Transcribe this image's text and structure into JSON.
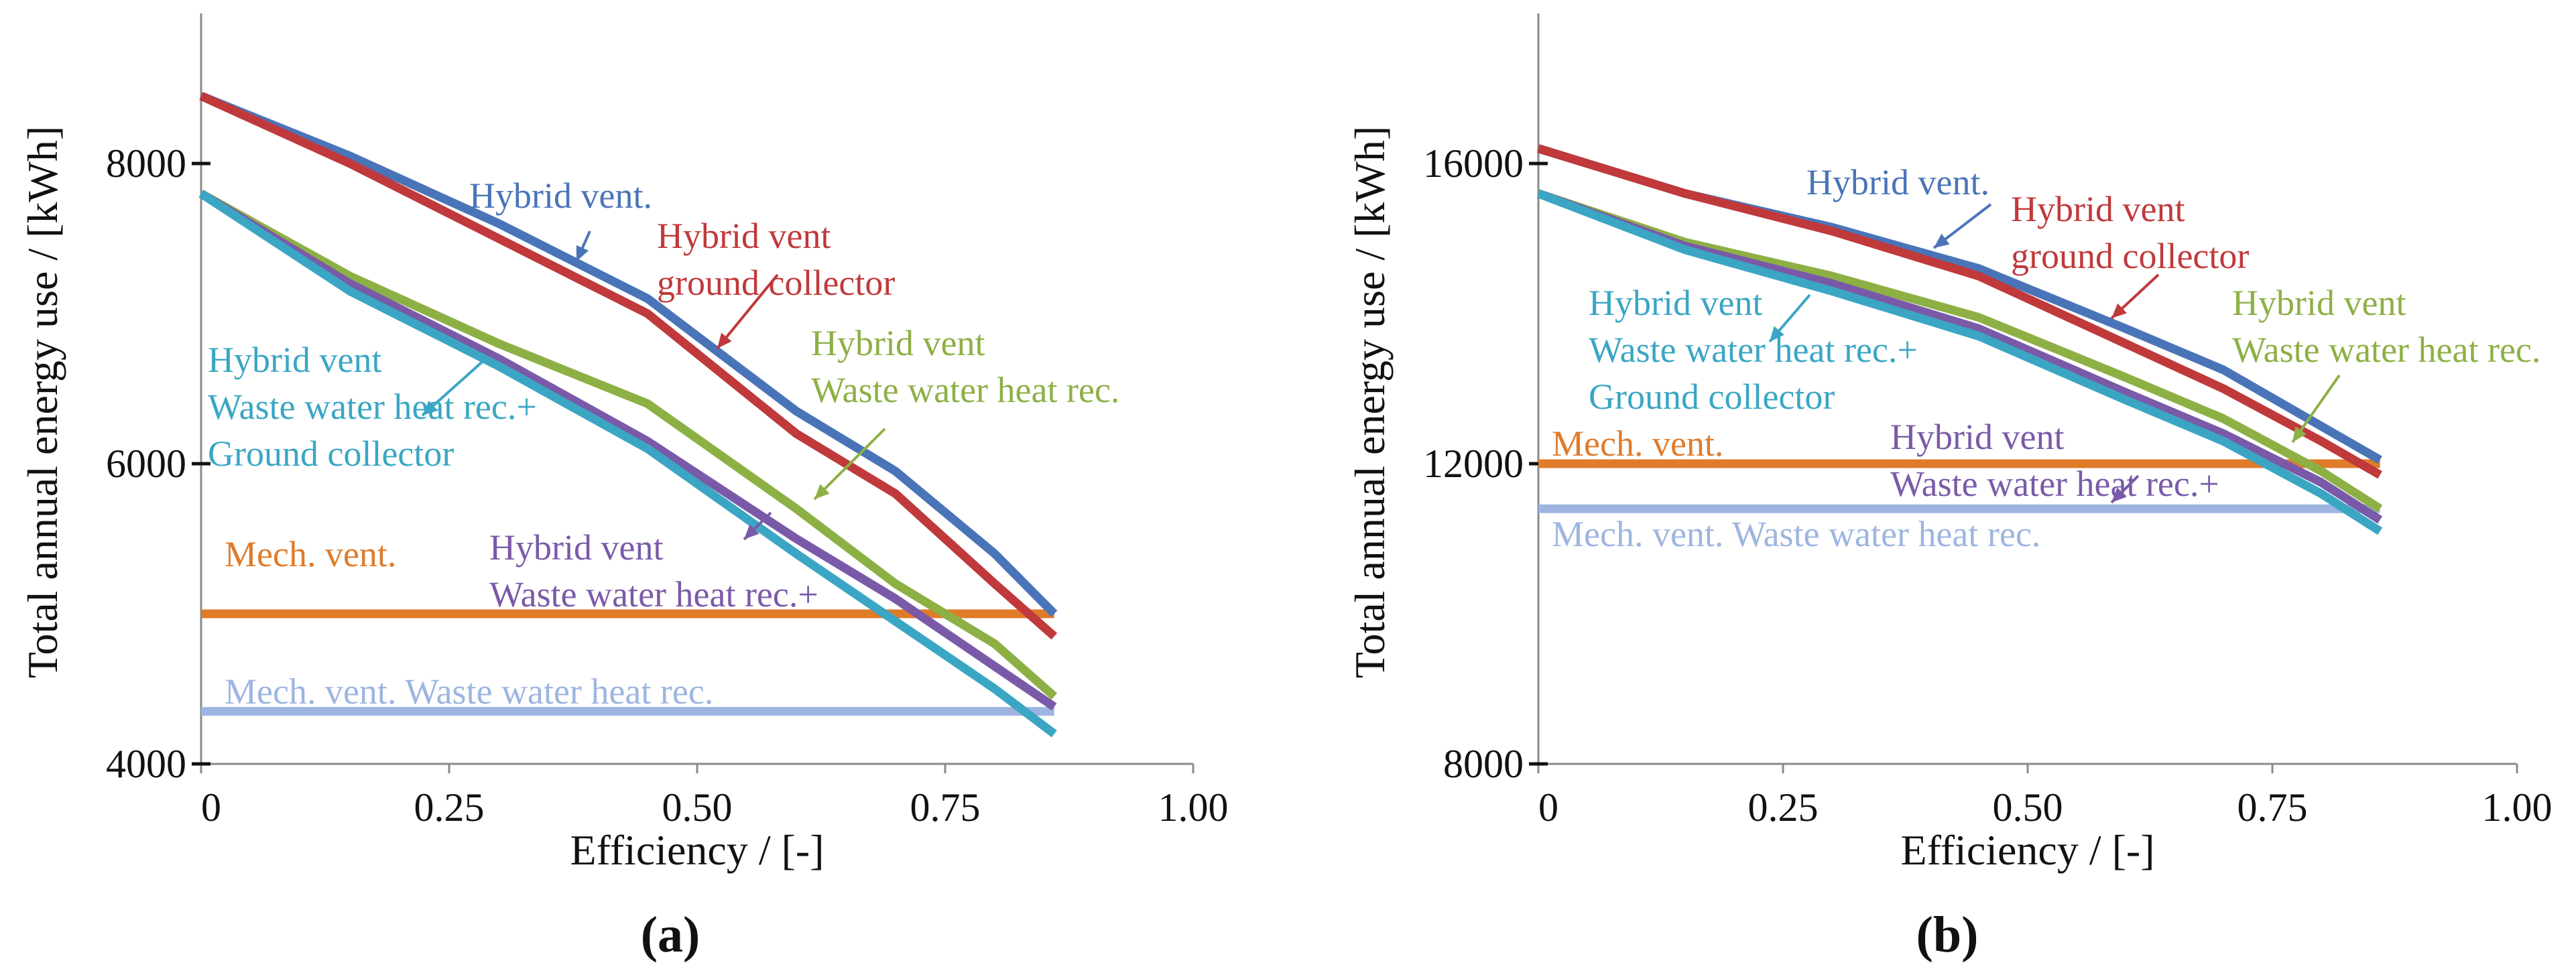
{
  "chart_data": [
    {
      "panel": "(a)",
      "type": "line",
      "xlabel": "Efficiency / [-]",
      "ylabel": "Total annual energy use / [kWh]",
      "xlim": [
        0,
        1.0
      ],
      "ylim": [
        4000,
        9000
      ],
      "xticks": [
        0,
        0.25,
        0.5,
        0.75,
        1.0
      ],
      "xtick_labels": [
        "0",
        "0.25",
        "0.50",
        "0.75",
        "1.00"
      ],
      "yticks": [
        4000,
        6000,
        8000
      ],
      "ytick_labels": [
        "4000",
        "6000",
        "8000"
      ],
      "series": [
        {
          "name": "Hybrid vent.",
          "color": "#4a74b8",
          "x": [
            0,
            0.15,
            0.3,
            0.45,
            0.6,
            0.7,
            0.8,
            0.86
          ],
          "y": [
            8450,
            8050,
            7600,
            7100,
            6350,
            5950,
            5400,
            5000
          ]
        },
        {
          "name": "Hybrid vent ground collector",
          "color": "#c0393b",
          "x": [
            0,
            0.15,
            0.3,
            0.45,
            0.6,
            0.7,
            0.8,
            0.86
          ],
          "y": [
            8450,
            8000,
            7500,
            7000,
            6200,
            5800,
            5200,
            4850
          ]
        },
        {
          "name": "Hybrid vent Waste water heat rec.",
          "color": "#8db045",
          "x": [
            0,
            0.15,
            0.3,
            0.45,
            0.6,
            0.7,
            0.8,
            0.86
          ],
          "y": [
            7800,
            7250,
            6800,
            6400,
            5700,
            5200,
            4800,
            4450
          ]
        },
        {
          "name": "Hybrid vent Waste water heat rec.+",
          "color": "#7a5aa8",
          "x": [
            0,
            0.15,
            0.3,
            0.45,
            0.6,
            0.7,
            0.8,
            0.86
          ],
          "y": [
            7800,
            7200,
            6700,
            6150,
            5500,
            5100,
            4650,
            4380
          ]
        },
        {
          "name": "Hybrid vent Waste water heat rec.+ Ground collector",
          "color": "#3aa6c4",
          "x": [
            0,
            0.15,
            0.3,
            0.45,
            0.6,
            0.7,
            0.8,
            0.86
          ],
          "y": [
            7800,
            7150,
            6650,
            6100,
            5400,
            4950,
            4500,
            4200
          ]
        },
        {
          "name": "Mech. vent.",
          "color": "#e07b2a",
          "x": [
            0,
            0.86
          ],
          "y": [
            5000,
            5000
          ]
        },
        {
          "name": "Mech. vent. Waste water heat rec.",
          "color": "#9db5e0",
          "x": [
            0,
            0.86
          ],
          "y": [
            4350,
            4350
          ]
        }
      ],
      "annotations": [
        {
          "text": "Hybrid vent.",
          "color": "#4a74b8"
        },
        {
          "text": "Hybrid vent",
          "color": "#c0393b"
        },
        {
          "text": "ground collector",
          "color": "#c0393b"
        },
        {
          "text": "Hybrid vent",
          "color": "#8db045"
        },
        {
          "text": "Waste water heat rec.",
          "color": "#8db045"
        },
        {
          "text": "Hybrid vent",
          "color": "#3aa6c4"
        },
        {
          "text": "Waste water heat rec.+",
          "color": "#3aa6c4"
        },
        {
          "text": "Ground collector",
          "color": "#3aa6c4"
        },
        {
          "text": "Hybrid vent",
          "color": "#7a5aa8"
        },
        {
          "text": "Waste water heat rec.+",
          "color": "#7a5aa8"
        },
        {
          "text": "Mech. vent.",
          "color": "#e07b2a"
        },
        {
          "text": "Mech. vent. Waste water heat rec.",
          "color": "#9db5e0"
        }
      ]
    },
    {
      "panel": "(b)",
      "type": "line",
      "xlabel": "Efficiency / [-]",
      "ylabel": "Total annual energy use / [kWh]",
      "xlim": [
        0,
        1.0
      ],
      "ylim": [
        8000,
        18000
      ],
      "xticks": [
        0,
        0.25,
        0.5,
        0.75,
        1.0
      ],
      "xtick_labels": [
        "0",
        "0.25",
        "0.50",
        "0.75",
        "1.00"
      ],
      "yticks": [
        8000,
        12000,
        16000
      ],
      "ytick_labels": [
        "8000",
        "12000",
        "16000"
      ],
      "series": [
        {
          "name": "Hybrid vent.",
          "color": "#4a74b8",
          "x": [
            0,
            0.15,
            0.3,
            0.45,
            0.6,
            0.7,
            0.8,
            0.86
          ],
          "y": [
            16200,
            15600,
            15150,
            14600,
            13800,
            13250,
            12500,
            12050
          ]
        },
        {
          "name": "Hybrid vent ground collector",
          "color": "#c0393b",
          "x": [
            0,
            0.15,
            0.3,
            0.45,
            0.6,
            0.7,
            0.8,
            0.86
          ],
          "y": [
            16200,
            15600,
            15100,
            14500,
            13600,
            13000,
            12300,
            11850
          ]
        },
        {
          "name": "Hybrid vent Waste water heat rec.",
          "color": "#8db045",
          "x": [
            0,
            0.15,
            0.3,
            0.45,
            0.6,
            0.7,
            0.8,
            0.86
          ],
          "y": [
            15600,
            14950,
            14500,
            13950,
            13150,
            12600,
            11900,
            11400
          ]
        },
        {
          "name": "Hybrid vent Waste water heat rec.+",
          "color": "#7a5aa8",
          "x": [
            0,
            0.15,
            0.3,
            0.45,
            0.6,
            0.7,
            0.8,
            0.86
          ],
          "y": [
            15600,
            14900,
            14400,
            13800,
            12950,
            12400,
            11750,
            11250
          ]
        },
        {
          "name": "Hybrid vent Waste water heat rec.+ Ground collector",
          "color": "#3aa6c4",
          "x": [
            0,
            0.15,
            0.3,
            0.45,
            0.6,
            0.7,
            0.8,
            0.86
          ],
          "y": [
            15600,
            14850,
            14300,
            13700,
            12850,
            12300,
            11600,
            11100
          ]
        },
        {
          "name": "Mech. vent.",
          "color": "#e07b2a",
          "x": [
            0,
            0.86
          ],
          "y": [
            12000,
            12000
          ]
        },
        {
          "name": "Mech. vent. Waste water heat rec.",
          "color": "#9db5e0",
          "x": [
            0,
            0.86
          ],
          "y": [
            11400,
            11400
          ]
        }
      ],
      "annotations": [
        {
          "text": "Hybrid vent.",
          "color": "#4a74b8"
        },
        {
          "text": "Hybrid vent",
          "color": "#c0393b"
        },
        {
          "text": "ground collector",
          "color": "#c0393b"
        },
        {
          "text": "Hybrid vent",
          "color": "#8db045"
        },
        {
          "text": "Waste water heat rec.",
          "color": "#8db045"
        },
        {
          "text": "Hybrid vent",
          "color": "#3aa6c4"
        },
        {
          "text": "Waste water heat rec.+",
          "color": "#3aa6c4"
        },
        {
          "text": "Ground collector",
          "color": "#3aa6c4"
        },
        {
          "text": "Hybrid vent",
          "color": "#7a5aa8"
        },
        {
          "text": "Waste water heat rec.+",
          "color": "#7a5aa8"
        },
        {
          "text": "Mech. vent.",
          "color": "#e07b2a"
        },
        {
          "text": "Mech. vent. Waste water heat rec.",
          "color": "#9db5e0"
        }
      ]
    }
  ]
}
